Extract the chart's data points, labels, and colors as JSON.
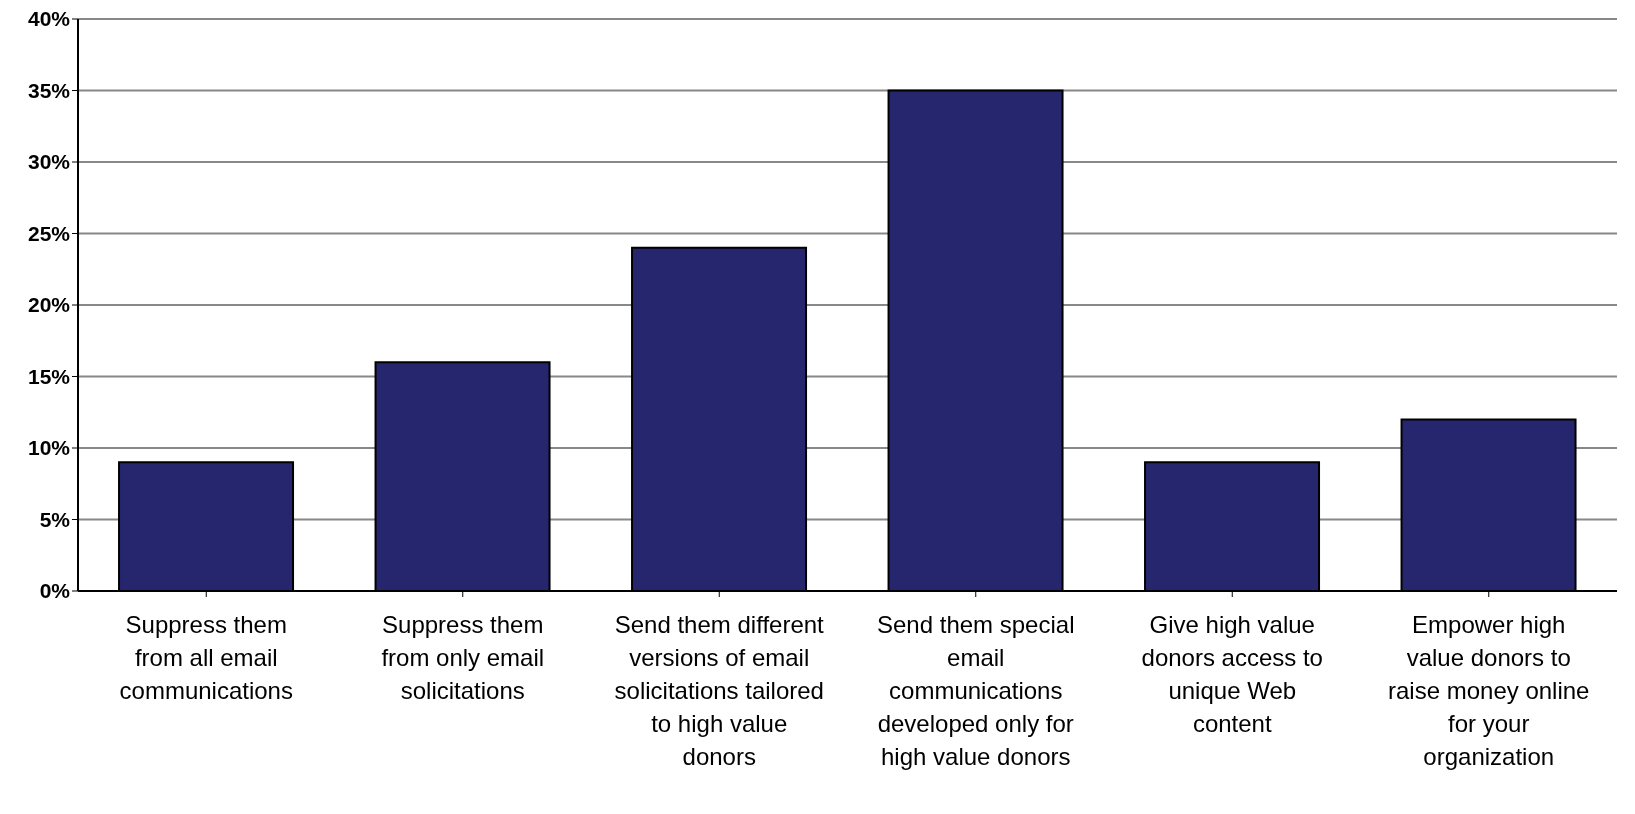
{
  "chart_data": {
    "type": "bar",
    "categories": [
      "Suppress them from all email communications",
      "Suppress them from only email solicitations",
      "Send them different versions of email solicitations tailored to high value donors",
      "Send them special email communications developed only for high value donors",
      "Give high value donors access to unique Web content",
      "Empower high value donors to raise money online for your organization"
    ],
    "values": [
      9,
      16,
      24,
      35,
      9,
      12
    ],
    "color": "#26266e",
    "ylim": [
      0,
      40
    ],
    "yticks": [
      {
        "value": 0,
        "label": "0%"
      },
      {
        "value": 5,
        "label": "5%"
      },
      {
        "value": 10,
        "label": "10%"
      },
      {
        "value": 15,
        "label": "15%"
      },
      {
        "value": 20,
        "label": "20%"
      },
      {
        "value": 25,
        "label": "25%"
      },
      {
        "value": 30,
        "label": "30%"
      },
      {
        "value": 35,
        "label": "35%"
      },
      {
        "value": 40,
        "label": "40%"
      }
    ],
    "grid": "y"
  }
}
